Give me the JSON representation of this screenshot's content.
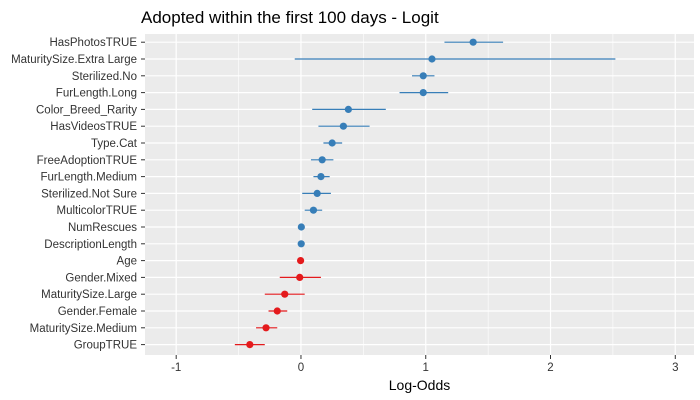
{
  "chart_data": {
    "type": "scatter",
    "title": "Adopted within the first 100 days - Logit",
    "xlabel": "Log-Odds",
    "ylabel": "",
    "xlim": [
      -1.25,
      3.15
    ],
    "x_ticks": [
      -1,
      0,
      1,
      2,
      3
    ],
    "x_tick_labels": [
      "-1",
      "0",
      "1",
      "2",
      "3"
    ],
    "grid": true,
    "legend": "none",
    "colors": {
      "positive": "#377EB8",
      "negative": "#E41A1C",
      "panel": "#EBEBEB",
      "grid": "#FFFFFF"
    },
    "points": [
      {
        "label": "HasPhotosTRUE",
        "estimate": 1.38,
        "lower": 1.15,
        "upper": 1.62,
        "sign": "positive"
      },
      {
        "label": "MaturitySize.Extra Large",
        "estimate": 1.05,
        "lower": -0.05,
        "upper": 2.52,
        "sign": "positive"
      },
      {
        "label": "Sterilized.No",
        "estimate": 0.98,
        "lower": 0.89,
        "upper": 1.07,
        "sign": "positive"
      },
      {
        "label": "FurLength.Long",
        "estimate": 0.98,
        "lower": 0.79,
        "upper": 1.18,
        "sign": "positive"
      },
      {
        "label": "Color_Breed_Rarity",
        "estimate": 0.38,
        "lower": 0.09,
        "upper": 0.68,
        "sign": "positive"
      },
      {
        "label": "HasVideosTRUE",
        "estimate": 0.34,
        "lower": 0.14,
        "upper": 0.55,
        "sign": "positive"
      },
      {
        "label": "Type.Cat",
        "estimate": 0.25,
        "lower": 0.18,
        "upper": 0.33,
        "sign": "positive"
      },
      {
        "label": "FreeAdoptionTRUE",
        "estimate": 0.17,
        "lower": 0.08,
        "upper": 0.26,
        "sign": "positive"
      },
      {
        "label": "FurLength.Medium",
        "estimate": 0.16,
        "lower": 0.1,
        "upper": 0.23,
        "sign": "positive"
      },
      {
        "label": "Sterilized.Not Sure",
        "estimate": 0.13,
        "lower": 0.01,
        "upper": 0.24,
        "sign": "positive"
      },
      {
        "label": "MulticolorTRUE",
        "estimate": 0.1,
        "lower": 0.03,
        "upper": 0.17,
        "sign": "positive"
      },
      {
        "label": "NumRescues",
        "estimate": 0.003,
        "lower": -0.01,
        "upper": 0.015,
        "sign": "positive"
      },
      {
        "label": "DescriptionLength",
        "estimate": 0.002,
        "lower": -0.01,
        "upper": 0.012,
        "sign": "positive"
      },
      {
        "label": "Age",
        "estimate": -0.003,
        "lower": -0.012,
        "upper": 0.006,
        "sign": "negative"
      },
      {
        "label": "Gender.Mixed",
        "estimate": -0.01,
        "lower": -0.17,
        "upper": 0.16,
        "sign": "negative"
      },
      {
        "label": "MaturitySize.Large",
        "estimate": -0.13,
        "lower": -0.29,
        "upper": 0.03,
        "sign": "negative"
      },
      {
        "label": "Gender.Female",
        "estimate": -0.19,
        "lower": -0.26,
        "upper": -0.11,
        "sign": "negative"
      },
      {
        "label": "MaturitySize.Medium",
        "estimate": -0.28,
        "lower": -0.36,
        "upper": -0.19,
        "sign": "negative"
      },
      {
        "label": "GroupTRUE",
        "estimate": -0.41,
        "lower": -0.53,
        "upper": -0.29,
        "sign": "negative"
      }
    ]
  }
}
